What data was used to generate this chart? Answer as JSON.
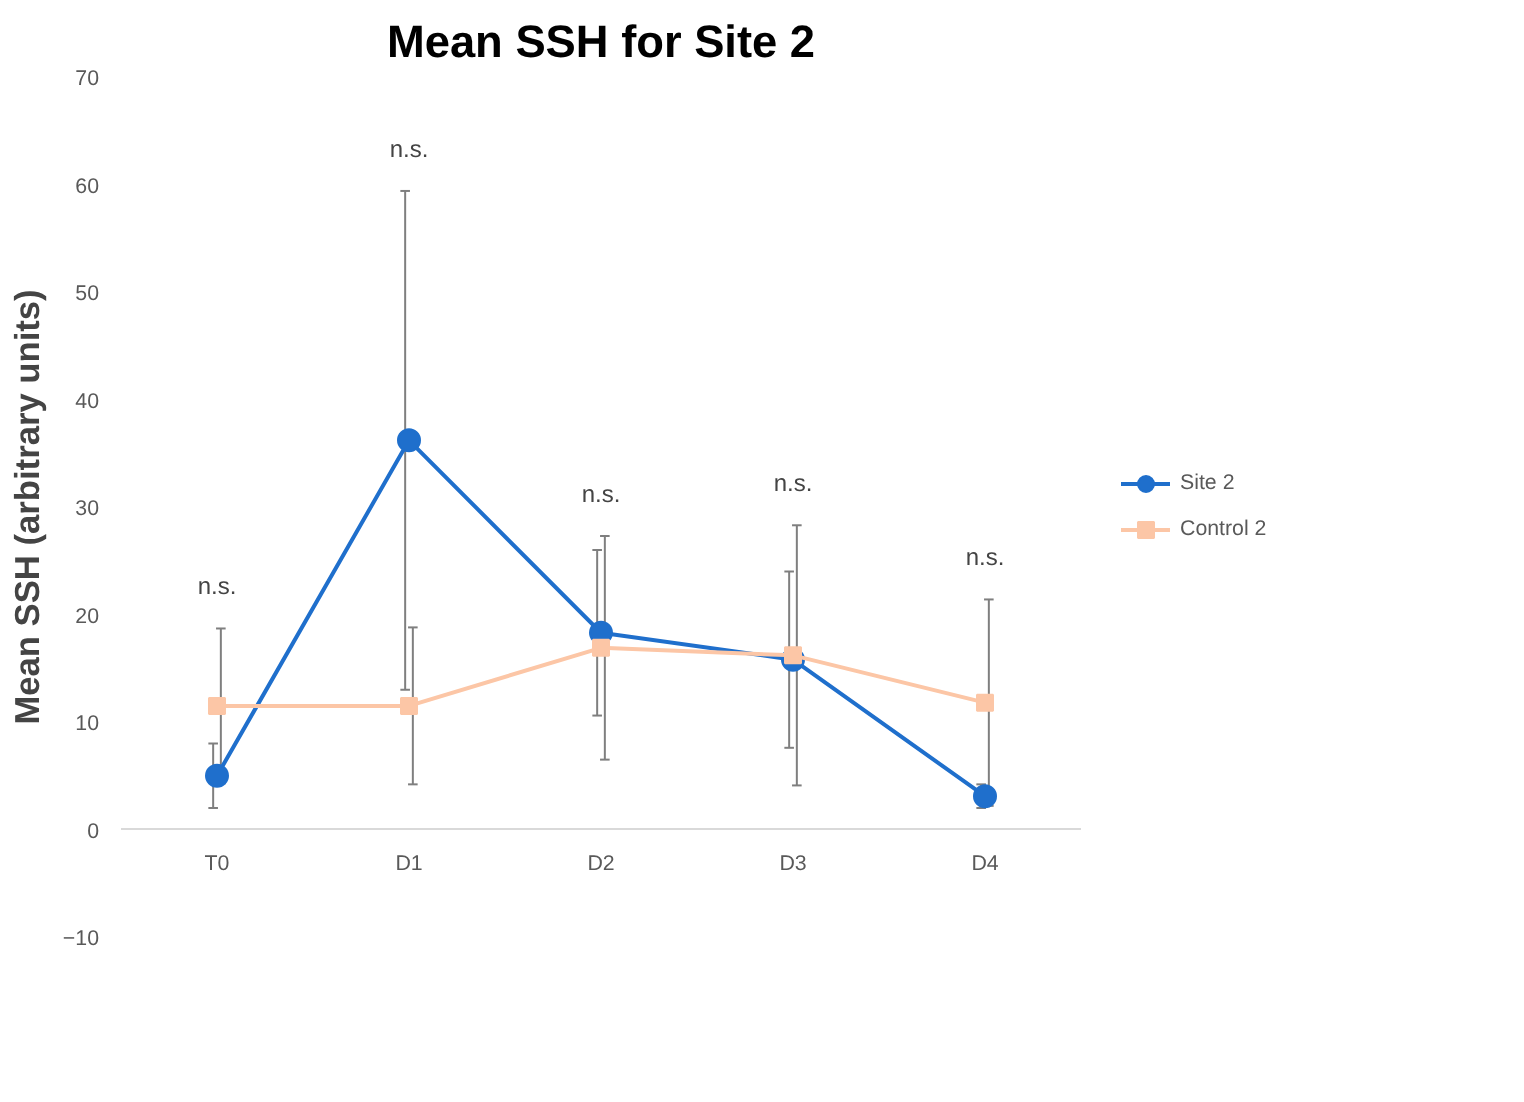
{
  "chart_data": {
    "type": "line",
    "title": "Mean SSH for Site 2",
    "ylabel": "Mean SSH (arbitrary units)",
    "categories": [
      "T0",
      "D1",
      "D2",
      "D3",
      "D4"
    ],
    "series": [
      {
        "name": "Site 2",
        "color": "#1f6fcc",
        "marker": "circle",
        "values": [
          5,
          36.2,
          18.3,
          15.8,
          3.1
        ],
        "errors": [
          3,
          23.2,
          7.7,
          8.2,
          1.1
        ]
      },
      {
        "name": "Control 2",
        "color": "#fcc6a6",
        "marker": "square",
        "values": [
          11.5,
          11.5,
          16.9,
          16.2,
          11.8
        ],
        "errors": [
          7.2,
          7.3,
          10.4,
          12.1,
          9.6
        ]
      }
    ],
    "ylim": [
      -10,
      70
    ],
    "yticks": [
      -10,
      0,
      10,
      20,
      30,
      40,
      50,
      60,
      70
    ],
    "grid": false,
    "legend": "right",
    "annotations": [
      "n.s.",
      "n.s.",
      "n.s.",
      "n.s.",
      "n.s."
    ]
  }
}
